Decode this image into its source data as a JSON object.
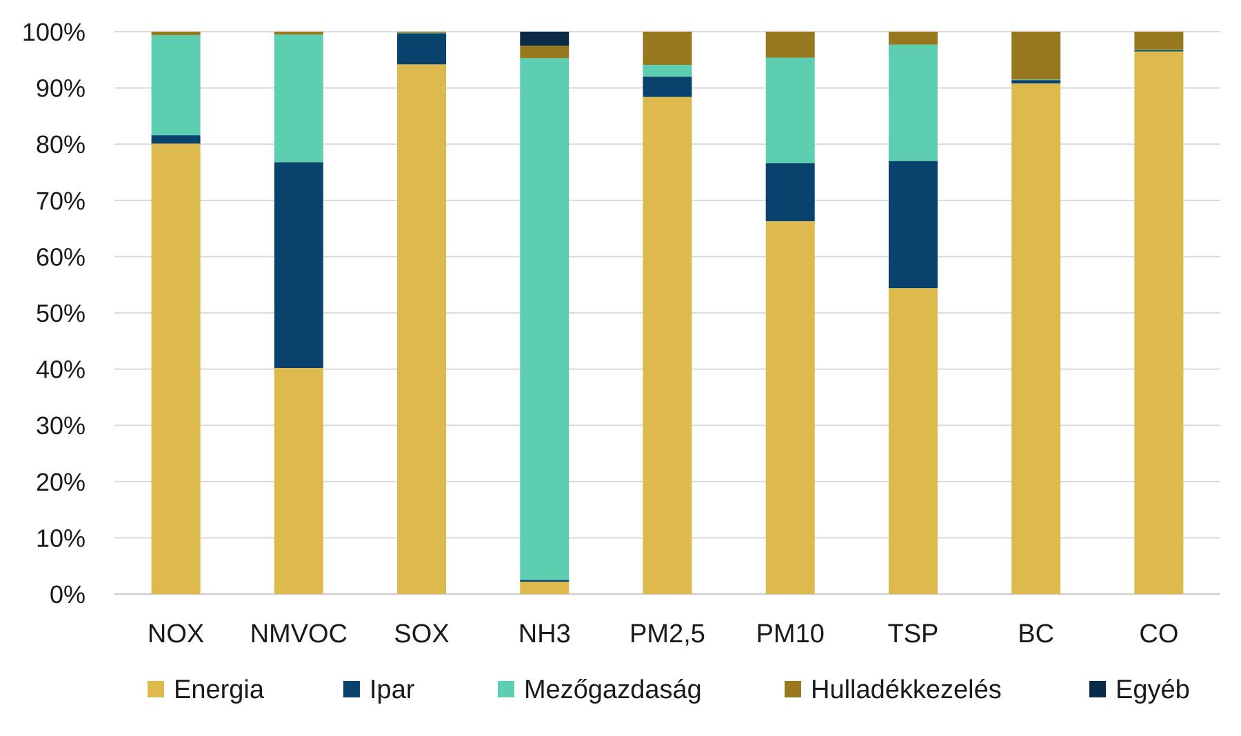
{
  "chart_data": {
    "type": "bar",
    "stacked": true,
    "normalized_percent": true,
    "title": "",
    "xlabel": "",
    "ylabel": "",
    "ylim": [
      0,
      100
    ],
    "yticks": [
      "0%",
      "10%",
      "20%",
      "30%",
      "40%",
      "50%",
      "60%",
      "70%",
      "80%",
      "90%",
      "100%"
    ],
    "grid": true,
    "legend_position": "bottom",
    "categories": [
      "NOX",
      "NMVOC",
      "SOX",
      "NH3",
      "PM2,5",
      "PM10",
      "TSP",
      "BC",
      "CO"
    ],
    "series": [
      {
        "name": "Energia",
        "color": "#DDB94E",
        "values": [
          80.1,
          40.2,
          94.2,
          2.2,
          88.4,
          66.3,
          54.4,
          90.8,
          96.5
        ]
      },
      {
        "name": "Ipar",
        "color": "#09426D",
        "values": [
          1.5,
          36.6,
          5.5,
          0.3,
          3.6,
          10.3,
          22.6,
          0.6,
          0.2
        ]
      },
      {
        "name": "Mezőgazdaság",
        "color": "#5DCFB0",
        "values": [
          17.8,
          22.7,
          0.1,
          92.8,
          2.1,
          18.8,
          20.7,
          0.1,
          0.1
        ]
      },
      {
        "name": "Hulladékkezelés",
        "color": "#98781F",
        "values": [
          0.6,
          0.5,
          0.2,
          2.2,
          5.9,
          4.6,
          2.3,
          8.5,
          3.2
        ]
      },
      {
        "name": "Egyéb",
        "color": "#0B2A47",
        "values": [
          0,
          0,
          0,
          2.5,
          0,
          0,
          0,
          0,
          0
        ]
      }
    ]
  }
}
